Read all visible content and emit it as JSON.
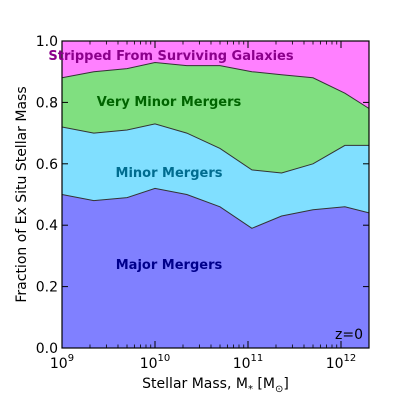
{
  "chart_data": {
    "type": "area",
    "stacked": true,
    "xscale": "log",
    "xlim": [
      1000000000.0,
      2000000000000.0
    ],
    "ylim": [
      0,
      1
    ],
    "xlabel": "Stellar Mass, M_* [M_⊙]",
    "ylabel": "Fraction of Ex Situ Stellar Mass",
    "x_ticks": [
      {
        "value": 1000000000.0,
        "base": "10",
        "exp": "9"
      },
      {
        "value": 10000000000.0,
        "base": "10",
        "exp": "10"
      },
      {
        "value": 100000000000.0,
        "base": "10",
        "exp": "11"
      },
      {
        "value": 1000000000000.0,
        "base": "10",
        "exp": "12"
      }
    ],
    "y_ticks": [
      "0.0",
      "0.2",
      "0.4",
      "0.6",
      "0.8",
      "1.0"
    ],
    "annotation": "z=0",
    "x": [
      1000000000.0,
      2200000000.0,
      5000000000.0,
      10000000000.0,
      22000000000.0,
      50000000000.0,
      110000000000.0,
      230000000000.0,
      500000000000.0,
      1100000000000.0,
      2000000000000.0
    ],
    "series": [
      {
        "name": "Major Mergers",
        "color": "#8080ff",
        "label_color": "#00008b",
        "values": [
          0.5,
          0.48,
          0.49,
          0.52,
          0.5,
          0.46,
          0.39,
          0.43,
          0.45,
          0.46,
          0.44
        ]
      },
      {
        "name": "Minor Mergers",
        "color": "#80dfff",
        "label_color": "#006c8f",
        "values": [
          0.22,
          0.22,
          0.22,
          0.21,
          0.2,
          0.19,
          0.19,
          0.14,
          0.15,
          0.2,
          0.22
        ]
      },
      {
        "name": "Very Minor Mergers",
        "color": "#80df80",
        "label_color": "#006400",
        "values": [
          0.16,
          0.2,
          0.2,
          0.2,
          0.22,
          0.27,
          0.32,
          0.32,
          0.28,
          0.17,
          0.12
        ]
      },
      {
        "name": "Stripped From Surviving Galaxies",
        "color": "#ff80ff",
        "label_color": "#8b008b",
        "values": [
          0.12,
          0.1,
          0.09,
          0.07,
          0.08,
          0.08,
          0.1,
          0.11,
          0.12,
          0.17,
          0.22
        ]
      }
    ]
  }
}
